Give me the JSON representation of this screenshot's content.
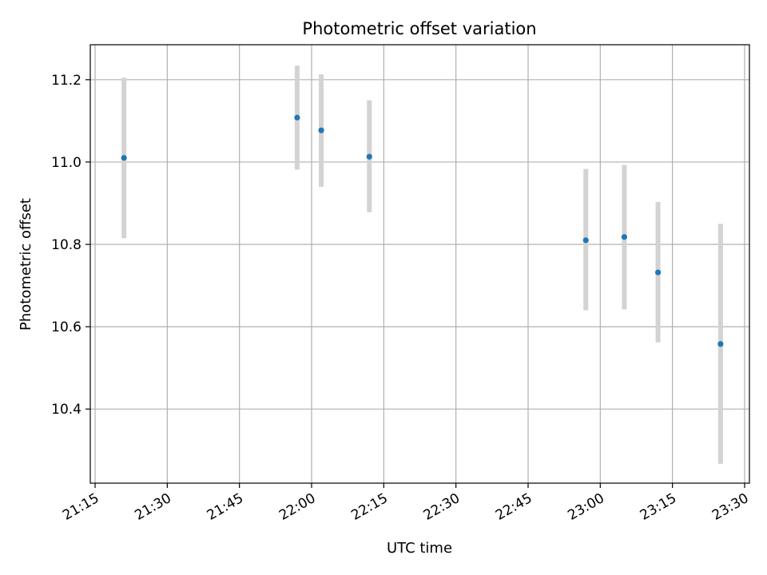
{
  "chart_data": {
    "type": "scatter",
    "title": "Photometric offset variation",
    "xlabel": "UTC time",
    "ylabel": "Photometric offset",
    "grid": true,
    "legend": "none",
    "colors": {
      "point": "#1f77b4",
      "errorbar": "#d3d3d3",
      "grid": "#b0b0b0",
      "axis": "#000000"
    },
    "x_unit": "UTC",
    "xlim": [
      "21:14",
      "23:31"
    ],
    "ylim": [
      10.22,
      11.285
    ],
    "x_ticks": [
      "21:15",
      "21:30",
      "21:45",
      "22:00",
      "22:15",
      "22:30",
      "22:45",
      "23:00",
      "23:15",
      "23:30"
    ],
    "y_ticks": [
      "10.4",
      "10.6",
      "10.8",
      "11.0",
      "11.2"
    ],
    "series": [
      {
        "points": [
          {
            "x": "21:21",
            "y": 11.01,
            "err_low": 10.815,
            "err_high": 11.205
          },
          {
            "x": "21:57",
            "y": 11.108,
            "err_low": 10.982,
            "err_high": 11.234
          },
          {
            "x": "22:02",
            "y": 11.077,
            "err_low": 10.94,
            "err_high": 11.213
          },
          {
            "x": "22:12",
            "y": 11.013,
            "err_low": 10.878,
            "err_high": 11.15
          },
          {
            "x": "22:57",
            "y": 10.81,
            "err_low": 10.64,
            "err_high": 10.983
          },
          {
            "x": "23:05",
            "y": 10.818,
            "err_low": 10.642,
            "err_high": 10.993
          },
          {
            "x": "23:12",
            "y": 10.732,
            "err_low": 10.562,
            "err_high": 10.903
          },
          {
            "x": "23:25",
            "y": 10.558,
            "err_low": 10.267,
            "err_high": 10.85
          }
        ]
      }
    ]
  }
}
